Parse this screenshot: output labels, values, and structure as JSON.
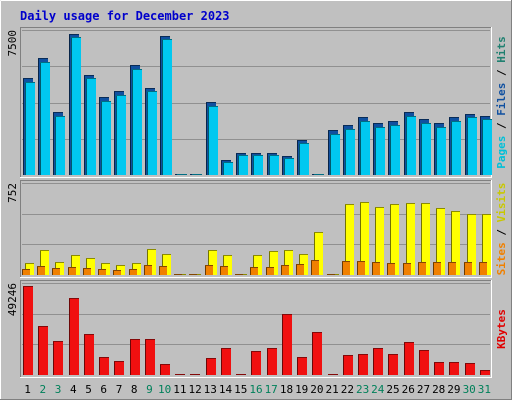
{
  "chart_data": [
    {
      "type": "bar",
      "title": "Daily usage for December 2023",
      "categories": [
        "1",
        "2",
        "3",
        "4",
        "5",
        "6",
        "7",
        "8",
        "9",
        "10",
        "11",
        "12",
        "13",
        "14",
        "15",
        "16",
        "17",
        "18",
        "19",
        "20",
        "21",
        "22",
        "23",
        "24",
        "25",
        "26",
        "27",
        "28",
        "29",
        "30",
        "31"
      ],
      "weekend_days": [
        "2",
        "3",
        "9",
        "10",
        "16",
        "17",
        "23",
        "24",
        "30",
        "31"
      ],
      "ymax_label": "7500",
      "ylim": [
        0,
        7800
      ],
      "grid": true,
      "vertical_labels": [
        {
          "text": "Pages",
          "color": "#00c0d8"
        },
        {
          "text": " / ",
          "color": "#000000"
        },
        {
          "text": "Files",
          "color": "#1050a0"
        },
        {
          "text": " / ",
          "color": "#000000"
        },
        {
          "text": "Hits",
          "color": "#208070"
        }
      ],
      "series": [
        {
          "name": "Hits",
          "color": "#20a080",
          "values": [
            5200,
            6300,
            3400,
            7600,
            5400,
            4200,
            4500,
            5900,
            4700,
            7500,
            0,
            0,
            3900,
            800,
            1200,
            1200,
            1200,
            1000,
            1900,
            0,
            2400,
            2700,
            3100,
            2800,
            2900,
            3400,
            3000,
            2800,
            3100,
            3300,
            3200
          ]
        },
        {
          "name": "Files",
          "color": "#1050a0",
          "values": [
            5200,
            6300,
            3400,
            7600,
            5400,
            4200,
            4500,
            5900,
            4700,
            7500,
            0,
            0,
            3900,
            800,
            1200,
            1200,
            1200,
            1000,
            1900,
            0,
            2400,
            2700,
            3100,
            2800,
            2900,
            3400,
            3000,
            2800,
            3100,
            3300,
            3200
          ]
        },
        {
          "name": "Pages",
          "color": "#00c8f0",
          "values": [
            5000,
            6100,
            3200,
            7400,
            5200,
            4000,
            4300,
            5700,
            4500,
            7300,
            0,
            0,
            3700,
            700,
            1100,
            1100,
            1100,
            900,
            1700,
            0,
            2200,
            2500,
            2900,
            2600,
            2700,
            3200,
            2800,
            2600,
            2900,
            3100,
            3000
          ]
        }
      ]
    },
    {
      "type": "bar",
      "ymax_label": "752",
      "ylim": [
        0,
        752
      ],
      "grid": true,
      "vertical_labels": [
        {
          "text": "Sites",
          "color": "#f08000"
        },
        {
          "text": " / ",
          "color": "#000000"
        },
        {
          "text": "Visits",
          "color": "#c8c800"
        }
      ],
      "series": [
        {
          "name": "Visits",
          "color": "#ffff00",
          "values": [
            95,
            205,
            110,
            160,
            140,
            100,
            80,
            95,
            215,
            175,
            0,
            0,
            205,
            165,
            0,
            165,
            195,
            205,
            175,
            355,
            0,
            580,
            600,
            555,
            580,
            585,
            590,
            550,
            520,
            495,
            495
          ]
        },
        {
          "name": "Sites",
          "color": "#f08000",
          "values": [
            45,
            70,
            55,
            65,
            55,
            50,
            40,
            45,
            80,
            70,
            0,
            0,
            80,
            70,
            0,
            65,
            65,
            85,
            90,
            125,
            0,
            115,
            115,
            105,
            100,
            100,
            110,
            105,
            110,
            110,
            110
          ]
        }
      ]
    },
    {
      "type": "bar",
      "ymax_label": "49246",
      "ylim": [
        0,
        53000
      ],
      "grid": true,
      "vertical_labels": [
        {
          "text": "KBytes",
          "color": "#e00000"
        }
      ],
      "series": [
        {
          "name": "KBytes",
          "color": "#f01010",
          "values": [
            51500,
            28500,
            19500,
            44500,
            23500,
            10500,
            8000,
            20500,
            21000,
            6500,
            0,
            0,
            10000,
            15500,
            0,
            14000,
            15500,
            35000,
            10500,
            25000,
            0,
            11500,
            12000,
            15500,
            12000,
            19000,
            14500,
            7500,
            7500,
            7000,
            3000
          ]
        }
      ]
    }
  ]
}
